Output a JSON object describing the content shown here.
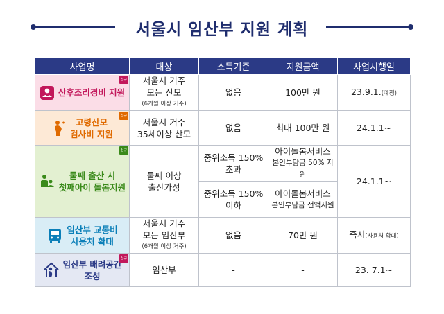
{
  "title": "서울시 임산부 지원 계획",
  "headers": [
    "사업명",
    "대상",
    "소득기준",
    "지원금액",
    "사업시행일"
  ],
  "new_badge": "신규",
  "rows": [
    {
      "name": "산후조리경비 지원",
      "target_line1": "서울시 거주",
      "target_line2": "모든 산모",
      "target_note": "(6개월 이상 거주)",
      "income": "없음",
      "amount": "100만 원",
      "date": "23.9.1.",
      "date_note": "(예정)"
    },
    {
      "name_line1": "고령산모",
      "name_line2": "검사비 지원",
      "target_line1": "서울시 거주",
      "target_line2": "35세이상 산모",
      "income": "없음",
      "amount": "최대 100만 원",
      "date": "24.1.1~"
    },
    {
      "name_line1": "둘째 출산 시",
      "name_line2": "첫째아이 돌봄지원",
      "target_line1": "둘째 이상",
      "target_line2": "출산가정",
      "income_a_line1": "중위소득 150%",
      "income_a_line2": "초과",
      "amount_a_line1": "아이돌봄서비스",
      "amount_a_line2": "본인부담금 50% 지원",
      "income_b_line1": "중위소득 150%",
      "income_b_line2": "이하",
      "amount_b_line1": "아이돌봄서비스",
      "amount_b_line2": "본인부담금 전액지원",
      "date": "24.1.1~"
    },
    {
      "name_line1": "임산부 교통비",
      "name_line2": "사용처 확대",
      "target_line1": "서울시 거주",
      "target_line2": "모든 임산부",
      "target_note": "(6개월 이상 거주)",
      "income": "없음",
      "amount": "70만 원",
      "date": "즉시",
      "date_note": "(사용처 확대)"
    },
    {
      "name_line1": "임산부 배려공간",
      "name_line2": "조성",
      "target_line1": "임산부",
      "income": "-",
      "amount": "-",
      "date": "23. 7.1~"
    }
  ],
  "colors": {
    "header_bg": "#2b3a86",
    "title": "#1f2d6e",
    "row1": "#c2185b",
    "row2": "#e06a00",
    "row3": "#3a8a1a",
    "row4": "#0b7fb8",
    "row5": "#2b3a86"
  },
  "icons": [
    "baby-care-icon",
    "pregnant-woman-icon",
    "child-care-icon",
    "bus-icon",
    "home-pregnant-icon"
  ]
}
